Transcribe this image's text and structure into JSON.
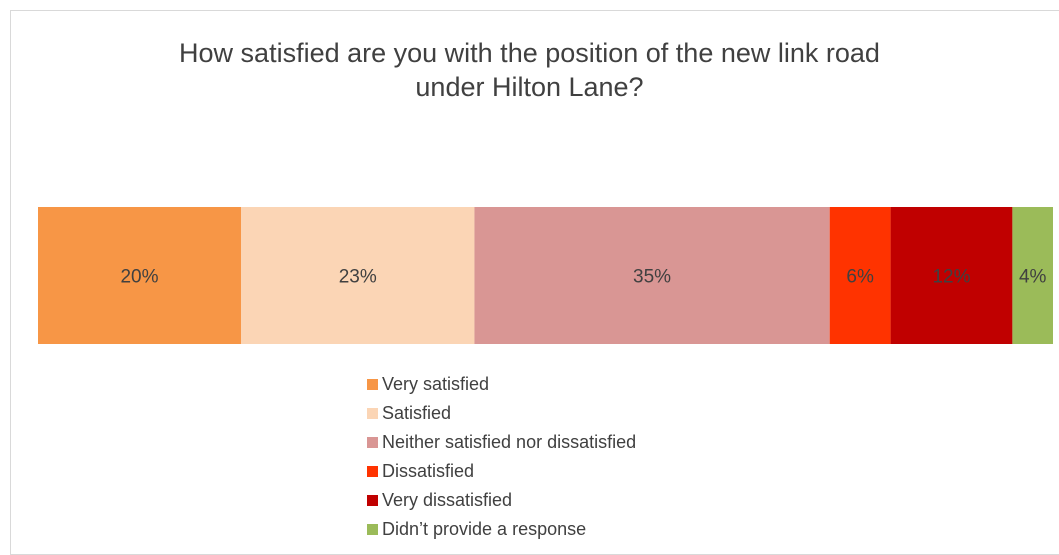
{
  "chart_data": {
    "type": "bar",
    "orientation": "horizontal-stacked-100",
    "title_lines": [
      "How satisfied are you with the position of the new link road",
      "under Hilton Lane?"
    ],
    "series": [
      {
        "name": "Very satisfied",
        "value": 20,
        "label": "20%",
        "color": "#f79646",
        "label_color": "#404040"
      },
      {
        "name": "Satisfied",
        "value": 23,
        "label": "23%",
        "color": "#fbd5b5",
        "label_color": "#404040"
      },
      {
        "name": "Neither satisfied nor dissatisfied",
        "value": 35,
        "label": "35%",
        "color": "#d99694",
        "label_color": "#404040"
      },
      {
        "name": "Dissatisfied",
        "value": 6,
        "label": "6%",
        "color": "#ff3300",
        "label_color": "#404040"
      },
      {
        "name": "Very dissatisfied",
        "value": 12,
        "label": "12%",
        "color": "#c00000",
        "label_color": "#404040"
      },
      {
        "name": "Didn’t provide a response",
        "value": 4,
        "label": "4%",
        "color": "#9bbb59",
        "label_color": "#404040"
      }
    ],
    "legend_position": "bottom"
  }
}
